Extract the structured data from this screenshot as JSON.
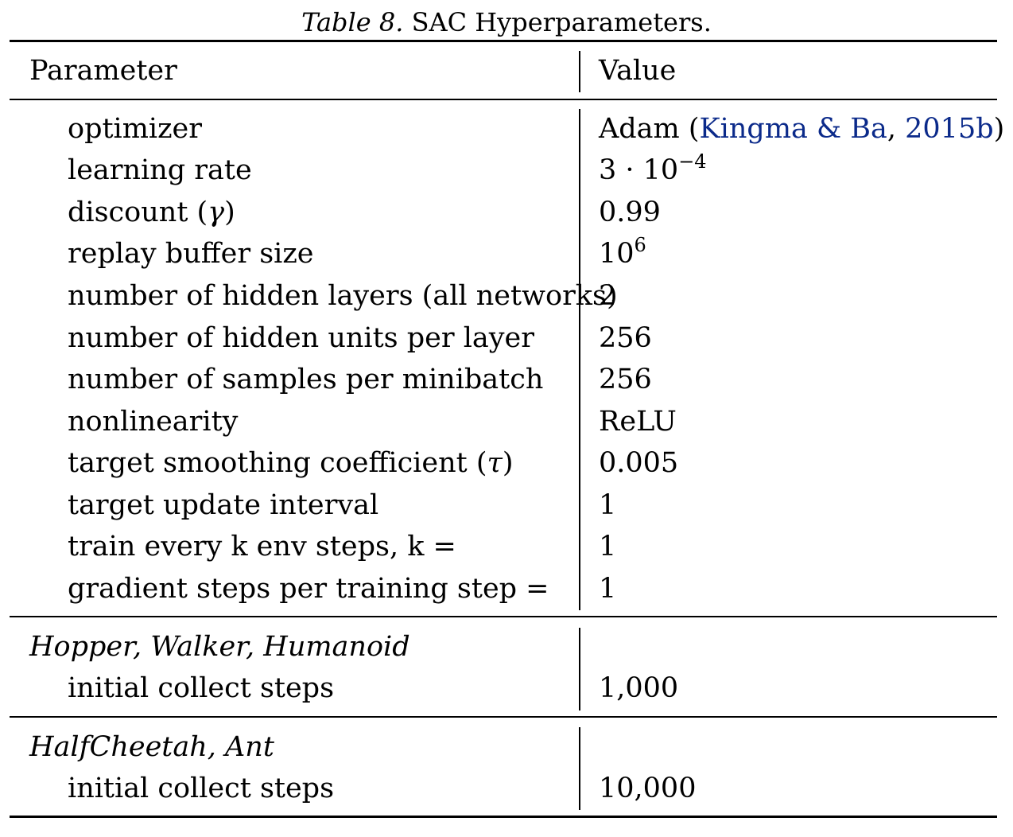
{
  "caption": {
    "label": "Table 8.",
    "text": "SAC Hyperparameters."
  },
  "header": {
    "param": "Parameter",
    "value": "Value"
  },
  "main_rows": [
    {
      "param": "optimizer",
      "value_pre": "Adam (",
      "cite_author": "Kingma & Ba",
      "cite_sep": ", ",
      "cite_year": "2015b",
      "value_post": ")"
    },
    {
      "param": "learning rate",
      "value_base": "3 · 10",
      "value_exp": "−4"
    },
    {
      "param_pre": "discount (",
      "param_math": "γ",
      "param_post": ")",
      "value": "0.99"
    },
    {
      "param": "replay buffer size",
      "value_base": "10",
      "value_exp": "6"
    },
    {
      "param": "number of hidden layers (all networks)",
      "value": "2"
    },
    {
      "param": "number of hidden units per layer",
      "value": "256"
    },
    {
      "param": "number of samples per minibatch",
      "value": "256"
    },
    {
      "param": "nonlinearity",
      "value": "ReLU"
    },
    {
      "param_pre": "target smoothing coefficient (",
      "param_math": "τ",
      "param_post": ")",
      "value": "0.005"
    },
    {
      "param": "target update interval",
      "value": "1"
    },
    {
      "param": "train every k env steps, k =",
      "value": "1"
    },
    {
      "param": "gradient steps per training step =",
      "value": "1"
    }
  ],
  "groups": [
    {
      "title": "Hopper, Walker, Humanoid",
      "param": "initial collect steps",
      "value": "1,000"
    },
    {
      "title": "HalfCheetah, Ant",
      "param": "initial collect steps",
      "value": "10,000"
    }
  ],
  "colors": {
    "citation": "#0b2a8a",
    "text": "#000000"
  }
}
